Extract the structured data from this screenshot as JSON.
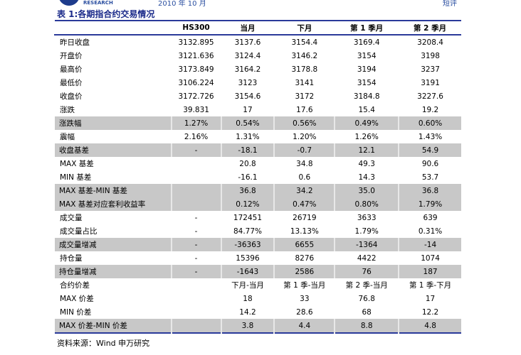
{
  "header": {
    "research": "RESEARCH",
    "date": "2010 年 10 月",
    "tag": "短评"
  },
  "title": "表 1:各期指合约交易情况",
  "columns": [
    "",
    "HS300",
    "当月",
    "下月",
    "第 1 季月",
    "第 2 季月"
  ],
  "rows": [
    {
      "label": "昨日收盘",
      "values": [
        "3132.895",
        "3137.6",
        "3154.4",
        "3169.4",
        "3208.4"
      ],
      "shaded": false
    },
    {
      "label": "开盘价",
      "values": [
        "3121.636",
        "3124.4",
        "3146.2",
        "3154",
        "3198"
      ],
      "shaded": false
    },
    {
      "label": "最高价",
      "values": [
        "3173.849",
        "3164.2",
        "3178.8",
        "3194",
        "3237"
      ],
      "shaded": false
    },
    {
      "label": "最低价",
      "values": [
        "3106.224",
        "3123",
        "3141",
        "3154",
        "3191"
      ],
      "shaded": false
    },
    {
      "label": "收盘价",
      "values": [
        "3172.726",
        "3154.6",
        "3172",
        "3184.8",
        "3227.6"
      ],
      "shaded": false
    },
    {
      "label": "涨跌",
      "values": [
        "39.831",
        "17",
        "17.6",
        "15.4",
        "19.2"
      ],
      "shaded": false
    },
    {
      "label": "涨跌幅",
      "values": [
        "1.27%",
        "0.54%",
        "0.56%",
        "0.49%",
        "0.60%"
      ],
      "shaded": true
    },
    {
      "label": "震幅",
      "values": [
        "2.16%",
        "1.31%",
        "1.20%",
        "1.26%",
        "1.43%"
      ],
      "shaded": false
    },
    {
      "label": "收盘基差",
      "values": [
        "-",
        "-18.1",
        "-0.7",
        "12.1",
        "54.9"
      ],
      "shaded": true
    },
    {
      "label": "MAX 基差",
      "values": [
        "",
        "20.8",
        "34.8",
        "49.3",
        "90.6"
      ],
      "shaded": false
    },
    {
      "label": "MIN 基差",
      "values": [
        "",
        "-16.1",
        "0.6",
        "14.3",
        "53.7"
      ],
      "shaded": false
    },
    {
      "label": "MAX 基差-MIN 基差",
      "values": [
        "",
        "36.8",
        "34.2",
        "35.0",
        "36.8"
      ],
      "shaded": true
    },
    {
      "label": "MAX 基差对应套利收益率",
      "values": [
        "",
        "0.12%",
        "0.47%",
        "0.80%",
        "1.79%"
      ],
      "shaded": true
    },
    {
      "label": "成交量",
      "values": [
        "-",
        "172451",
        "26719",
        "3633",
        "639"
      ],
      "shaded": false
    },
    {
      "label": "成交量占比",
      "values": [
        "-",
        "84.77%",
        "13.13%",
        "1.79%",
        "0.31%"
      ],
      "shaded": false
    },
    {
      "label": "成交量增减",
      "values": [
        "-",
        "-36363",
        "6655",
        "-1364",
        "-14"
      ],
      "shaded": true
    },
    {
      "label": "持仓量",
      "values": [
        "-",
        "15396",
        "8276",
        "4422",
        "1074"
      ],
      "shaded": false
    },
    {
      "label": "持仓量增减",
      "values": [
        "-",
        "-1643",
        "2586",
        "76",
        "187"
      ],
      "shaded": true
    },
    {
      "label": "合约价差",
      "values": [
        "",
        "下月-当月",
        "第 1 季-当月",
        "第 2 季-当月",
        "第 1 季-下月"
      ],
      "shaded": false
    },
    {
      "label": "MAX 价差",
      "values": [
        "",
        "18",
        "33",
        "76.8",
        "17"
      ],
      "shaded": false
    },
    {
      "label": "MIN 价差",
      "values": [
        "",
        "14.2",
        "28.6",
        "68",
        "12.2"
      ],
      "shaded": false
    },
    {
      "label": "MAX 价差-MIN 价差",
      "values": [
        "",
        "3.8",
        "4.4",
        "8.8",
        "4.8"
      ],
      "shaded": true
    }
  ],
  "source": "资料来源：Wind 申万研究"
}
